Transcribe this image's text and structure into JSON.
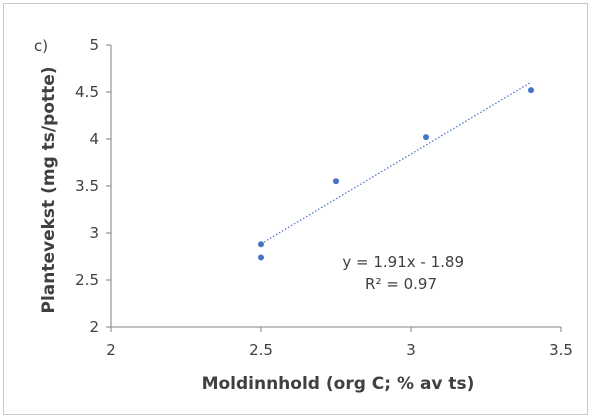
{
  "chart_data": {
    "type": "scatter",
    "panel_label": "c)",
    "xlabel": "Moldinnhold (org C; % av ts)",
    "ylabel": "Plantevekst (mg ts/potte)",
    "xlim": [
      2,
      3.5
    ],
    "ylim": [
      2,
      5
    ],
    "x_ticks": [
      2,
      2.5,
      3,
      3.5
    ],
    "y_ticks": [
      2,
      2.5,
      3,
      3.5,
      4,
      4.5,
      5
    ],
    "x_tick_labels": [
      "2",
      "2.5",
      "3",
      "3.5"
    ],
    "y_tick_labels": [
      "2",
      "2.5",
      "3",
      "3.5",
      "4",
      "4.5",
      "5"
    ],
    "series": [
      {
        "points": [
          {
            "x": 2.5,
            "y": 2.88
          },
          {
            "x": 2.5,
            "y": 2.74
          },
          {
            "x": 2.75,
            "y": 3.55
          },
          {
            "x": 3.05,
            "y": 4.02
          },
          {
            "x": 3.4,
            "y": 4.52
          }
        ],
        "color": "#4472c4"
      }
    ],
    "trendline": {
      "type": "linear",
      "slope": 1.91,
      "intercept": -1.89,
      "x_range": [
        2.5,
        3.4
      ],
      "style": "dotted",
      "color": "#4472c4"
    },
    "equation_label": "y = 1.91x - 1.89",
    "r2_label": "R² = 0.97",
    "grid": false,
    "legend": "none"
  }
}
